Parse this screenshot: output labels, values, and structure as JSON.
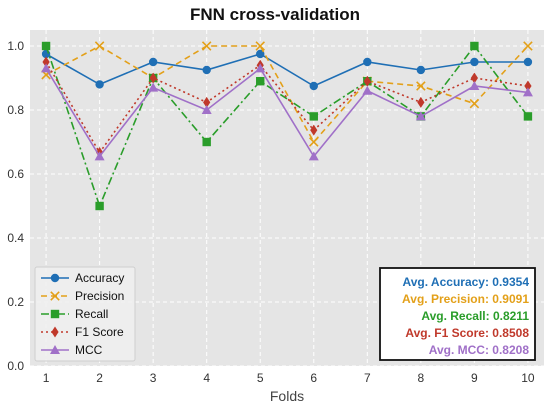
{
  "chart_data": {
    "type": "line",
    "title": "FNN cross-validation",
    "xlabel": "Folds",
    "ylabel": "",
    "x": [
      1,
      2,
      3,
      4,
      5,
      6,
      7,
      8,
      9,
      10
    ],
    "xlim": [
      0.7,
      10.3
    ],
    "ylim": [
      0,
      1.05
    ],
    "yticks": [
      0.0,
      0.2,
      0.4,
      0.6,
      0.8,
      1.0
    ],
    "yticklabels": [
      "0.0",
      "0.2",
      "0.4",
      "0.6",
      "0.8",
      "1.0"
    ],
    "xticklabels": [
      "1",
      "2",
      "3",
      "4",
      "5",
      "6",
      "7",
      "8",
      "9",
      "10"
    ],
    "grid": true,
    "legend_position": "lower-left",
    "series": [
      {
        "name": "Accuracy",
        "color": "#1f6fb5",
        "marker": "circle",
        "dash": "solid",
        "values": [
          0.975,
          0.88,
          0.95,
          0.925,
          0.975,
          0.875,
          0.95,
          0.925,
          0.95,
          0.95
        ]
      },
      {
        "name": "Precision",
        "color": "#e3a019",
        "marker": "x",
        "dash": "dashed",
        "values": [
          0.91,
          1.0,
          0.9,
          1.0,
          1.0,
          0.7,
          0.89,
          0.875,
          0.82,
          1.0
        ]
      },
      {
        "name": "Recall",
        "color": "#2a9d2a",
        "marker": "square",
        "dash": "dashdot",
        "values": [
          1.0,
          0.5,
          0.9,
          0.7,
          0.89,
          0.78,
          0.89,
          0.78,
          1.0,
          0.78
        ]
      },
      {
        "name": "F1 Score",
        "color": "#c0392b",
        "marker": "diamond",
        "dash": "dotted",
        "values": [
          0.95,
          0.667,
          0.9,
          0.824,
          0.94,
          0.737,
          0.89,
          0.824,
          0.9,
          0.875
        ]
      },
      {
        "name": "MCC",
        "color": "#a070c8",
        "marker": "triangle",
        "dash": "solid",
        "values": [
          0.93,
          0.655,
          0.87,
          0.8,
          0.93,
          0.655,
          0.86,
          0.78,
          0.875,
          0.855
        ]
      }
    ],
    "annotations": [
      {
        "text": "Avg. Accuracy: 0.9354",
        "color": "#1f6fb5"
      },
      {
        "text": "Avg. Precision: 0.9091",
        "color": "#e3a019"
      },
      {
        "text": "Avg. Recall: 0.8211",
        "color": "#2a9d2a"
      },
      {
        "text": "Avg. F1 Score: 0.8508",
        "color": "#c0392b"
      },
      {
        "text": "Avg. MCC: 0.8208",
        "color": "#a070c8"
      }
    ]
  }
}
